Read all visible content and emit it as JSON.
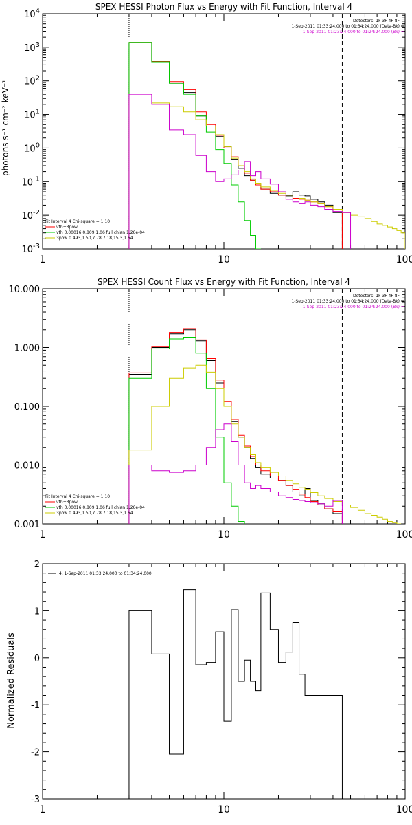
{
  "chart_data": [
    {
      "type": "line",
      "title": "SPEX HESSI Photon Flux vs Energy with Fit Function, Interval 4",
      "xlabel": "",
      "ylabel": "photons s⁻¹ cm⁻² keV⁻¹",
      "xscale": "log",
      "yscale": "log",
      "xlim": [
        1,
        100
      ],
      "ylim": [
        0.001,
        10000
      ],
      "xticks": [
        1,
        10,
        100
      ],
      "xtick_labels": [
        "1",
        "10",
        "100"
      ],
      "yticks": [
        0.001,
        0.01,
        0.1,
        1,
        10,
        100,
        1000,
        10000
      ],
      "ytick_labels": [
        {
          "base": "10",
          "exp": "-3"
        },
        {
          "base": "10",
          "exp": "-2"
        },
        {
          "base": "10",
          "exp": "-1"
        },
        {
          "base": "10",
          "exp": "0"
        },
        {
          "base": "10",
          "exp": "1"
        },
        {
          "base": "10",
          "exp": "2"
        },
        {
          "base": "10",
          "exp": "3"
        },
        {
          "base": "10",
          "exp": "4"
        }
      ],
      "vlines": [
        {
          "x": 3.0,
          "style": "dotted"
        },
        {
          "x": 45.0,
          "style": "dashed"
        }
      ],
      "legend_top_right": [
        {
          "text": "Detectors: 1F 3F 4F 8F",
          "color": "#000000"
        },
        {
          "text": "1-Sep-2011 01:33:24.000 to 01:34:24.000 (Data-Bk)",
          "color": "#000000"
        },
        {
          "text": "1-Sep-2011 01:23:24.000 to 01:24:24.000 (Bk)",
          "color": "#cc00cc"
        }
      ],
      "legend_bottom_left": [
        {
          "text": "Fit Interval 4   Chi-square = 1.10",
          "color": "#000000"
        },
        {
          "text": "vth+3pow",
          "color": "#ff0000"
        },
        {
          "text": "vth 0.00016,0.809,1.06  full chian 1.26e-04",
          "color": "#00cc00"
        },
        {
          "text": "3pow 0.493,1.50,7.78,7.18,15.3,1.54",
          "color": "#cccc00"
        }
      ],
      "edges": [
        3.0,
        4.0,
        5.0,
        6.0,
        7.0,
        8.0,
        9.0,
        10.0,
        11.0,
        12.0,
        13.0,
        14.0,
        15.0,
        16.0,
        18.0,
        20.0,
        22.0,
        24.0,
        26.0,
        28.0,
        30.0,
        33.0,
        36.0,
        40.0,
        45.0,
        50.0,
        55.0,
        60.0,
        65.0,
        70.0,
        75.0,
        80.0,
        85.0,
        90.0,
        95.0,
        100.0
      ],
      "series": [
        {
          "color": "#000000",
          "start": 0,
          "values": [
            1350,
            370,
            85,
            45,
            9,
            4.5,
            2.2,
            1.1,
            0.45,
            0.25,
            0.15,
            0.11,
            0.08,
            0.06,
            0.045,
            0.04,
            0.038,
            0.05,
            0.04,
            0.038,
            0.03,
            0.025,
            0.02,
            0.012
          ]
        },
        {
          "color": "#ff0000",
          "start": 0,
          "values": [
            1400,
            380,
            95,
            55,
            12,
            5,
            2.4,
            1.0,
            0.55,
            0.3,
            0.18,
            0.11,
            0.08,
            0.06,
            0.05,
            0.04,
            0.035,
            0.032,
            0.03,
            0.028,
            0.025,
            0.022,
            0.018,
            0.015
          ]
        },
        {
          "color": "#00cc00",
          "start": 0,
          "values": [
            1400,
            370,
            85,
            40,
            9,
            3,
            0.9,
            0.35,
            0.08,
            0.025,
            0.007,
            0.0025,
            0.0009
          ]
        },
        {
          "color": "#cccc00",
          "start": 0,
          "values": [
            27,
            22,
            17,
            12,
            7,
            4.5,
            2.5,
            1.1,
            0.5,
            0.3,
            0.2,
            0.12,
            0.09,
            0.07,
            0.055,
            0.045,
            0.04,
            0.035,
            0.032,
            0.028,
            0.025,
            0.022,
            0.018,
            0.015,
            0.012,
            0.01,
            0.009,
            0.008,
            0.0065,
            0.0055,
            0.005,
            0.0045,
            0.004,
            0.0035,
            0.003
          ]
        },
        {
          "color": "#cc00cc",
          "start": 0,
          "values": [
            40,
            20,
            3.5,
            2.5,
            0.6,
            0.2,
            0.1,
            0.12,
            0.16,
            0.22,
            0.4,
            0.15,
            0.2,
            0.12,
            0.085,
            0.05,
            0.03,
            0.025,
            0.022,
            0.025,
            0.02,
            0.018,
            0.015,
            0.013,
            0.012
          ]
        }
      ]
    },
    {
      "type": "line",
      "title": "SPEX HESSI Count Flux vs Energy with Fit Function, Interval 4",
      "xlabel": "",
      "ylabel": "",
      "xscale": "log",
      "yscale": "log",
      "xlim": [
        1,
        100
      ],
      "ylim": [
        0.001,
        10
      ],
      "xticks": [
        1,
        10,
        100
      ],
      "xtick_labels": [
        "1",
        "10",
        "100"
      ],
      "yticks": [
        0.001,
        0.01,
        0.1,
        1,
        10
      ],
      "ytick_labels": [
        {
          "base": "0.001"
        },
        {
          "base": "0.010"
        },
        {
          "base": "0.100"
        },
        {
          "base": "1.000"
        },
        {
          "base": "10.000"
        }
      ],
      "vlines": [
        {
          "x": 3.0,
          "style": "dotted"
        },
        {
          "x": 45.0,
          "style": "dashed"
        }
      ],
      "legend_top_right": [
        {
          "text": "Detectors: 1F 3F 4F 8F",
          "color": "#000000"
        },
        {
          "text": "1-Sep-2011 01:33:24.000 to 01:34:24.000 (Data-Bk)",
          "color": "#000000"
        },
        {
          "text": "1-Sep-2011 01:23:24.000 to 01:24:24.000 (Bk)",
          "color": "#cc00cc"
        }
      ],
      "legend_bottom_left": [
        {
          "text": "Fit Interval 4   Chi-square = 1.10",
          "color": "#000000"
        },
        {
          "text": "vth+3pow",
          "color": "#ff0000"
        },
        {
          "text": "vth 0.00016,0.809,1.06  full chian 1.26e-04",
          "color": "#00cc00"
        },
        {
          "text": "3pow 0.493,1.50,7.78,7.18,15.3,1.54",
          "color": "#cccc00"
        }
      ],
      "edges": [
        3.0,
        4.0,
        5.0,
        6.0,
        7.0,
        8.0,
        9.0,
        10.0,
        11.0,
        12.0,
        13.0,
        14.0,
        15.0,
        16.0,
        18.0,
        20.0,
        22.0,
        24.0,
        26.0,
        28.0,
        30.0,
        33.0,
        36.0,
        40.0,
        45.0,
        50.0,
        55.0,
        60.0,
        65.0,
        70.0,
        75.0,
        80.0,
        85.0,
        90.0,
        95.0,
        100.0
      ],
      "series": [
        {
          "color": "#000000",
          "start": 0,
          "values": [
            0.35,
            1.0,
            1.7,
            2.0,
            1.3,
            0.6,
            0.25,
            0.1,
            0.055,
            0.03,
            0.02,
            0.013,
            0.009,
            0.007,
            0.006,
            0.0055,
            0.0045,
            0.0035,
            0.003,
            0.004,
            0.0025,
            0.0022,
            0.0018,
            0.0015
          ]
        },
        {
          "color": "#ff0000",
          "start": 0,
          "values": [
            0.37,
            1.05,
            1.8,
            2.1,
            1.35,
            0.65,
            0.28,
            0.12,
            0.06,
            0.032,
            0.021,
            0.014,
            0.01,
            0.008,
            0.0065,
            0.0055,
            0.0045,
            0.0038,
            0.0032,
            0.0028,
            0.0024,
            0.0021,
            0.0018,
            0.0016
          ]
        },
        {
          "color": "#00cc00",
          "start": 0,
          "values": [
            0.3,
            0.95,
            1.4,
            1.5,
            0.8,
            0.2,
            0.03,
            0.005,
            0.002,
            0.0011
          ]
        },
        {
          "color": "#cccc00",
          "start": 0,
          "values": [
            0.018,
            0.1,
            0.3,
            0.45,
            0.5,
            0.38,
            0.2,
            0.1,
            0.05,
            0.03,
            0.02,
            0.015,
            0.011,
            0.009,
            0.0075,
            0.0065,
            0.0055,
            0.0048,
            0.0042,
            0.0038,
            0.0034,
            0.003,
            0.0027,
            0.0024,
            0.0021,
            0.0019,
            0.0017,
            0.0015,
            0.0014,
            0.0013,
            0.0012,
            0.0011,
            0.00105,
            0.001
          ]
        },
        {
          "color": "#cc00cc",
          "start": 0,
          "values": [
            0.01,
            0.008,
            0.0075,
            0.008,
            0.01,
            0.02,
            0.04,
            0.05,
            0.025,
            0.01,
            0.005,
            0.004,
            0.0045,
            0.004,
            0.0035,
            0.003,
            0.0028,
            0.0026,
            0.0025,
            0.0024,
            0.0023,
            0.0022,
            0.002,
            0.0025
          ]
        }
      ]
    },
    {
      "type": "line",
      "title": "",
      "xlabel": "",
      "ylabel": "Normalized Residuals",
      "xscale": "log",
      "yscale": "linear",
      "xlim": [
        1,
        100
      ],
      "ylim": [
        -3,
        2
      ],
      "xticks": [
        1,
        10,
        100
      ],
      "xtick_labels": [
        "1",
        "10",
        "100"
      ],
      "yticks": [
        -3,
        -2,
        -1,
        0,
        1,
        2
      ],
      "ytick_labels": [
        {
          "base": "-3"
        },
        {
          "base": "-2"
        },
        {
          "base": "-1"
        },
        {
          "base": "0"
        },
        {
          "base": "1"
        },
        {
          "base": "2"
        }
      ],
      "legend_top_left": [
        {
          "text": "4.  1-Sep-2011 01:33:24.000 to 01:34:24.000",
          "color": "#000000"
        }
      ],
      "edges": [
        3.0,
        4.0,
        5.0,
        6.0,
        7.0,
        8.0,
        9.0,
        10.0,
        11.0,
        12.0,
        13.0,
        14.0,
        15.0,
        16.0,
        18.0,
        20.0,
        22.0,
        24.0,
        26.0,
        28.0,
        30.0,
        33.0,
        36.0,
        40.0,
        45.0
      ],
      "series": [
        {
          "color": "#000000",
          "start": 0,
          "values": [
            1.0,
            0.08,
            -2.05,
            1.45,
            -0.15,
            -0.1,
            0.55,
            -1.35,
            1.02,
            -0.5,
            -0.05,
            -0.5,
            -0.7,
            1.38,
            0.6,
            -0.1,
            0.12,
            0.75,
            -0.35,
            -0.8,
            -0.8,
            -0.8,
            -0.8,
            -0.8
          ]
        }
      ]
    }
  ]
}
